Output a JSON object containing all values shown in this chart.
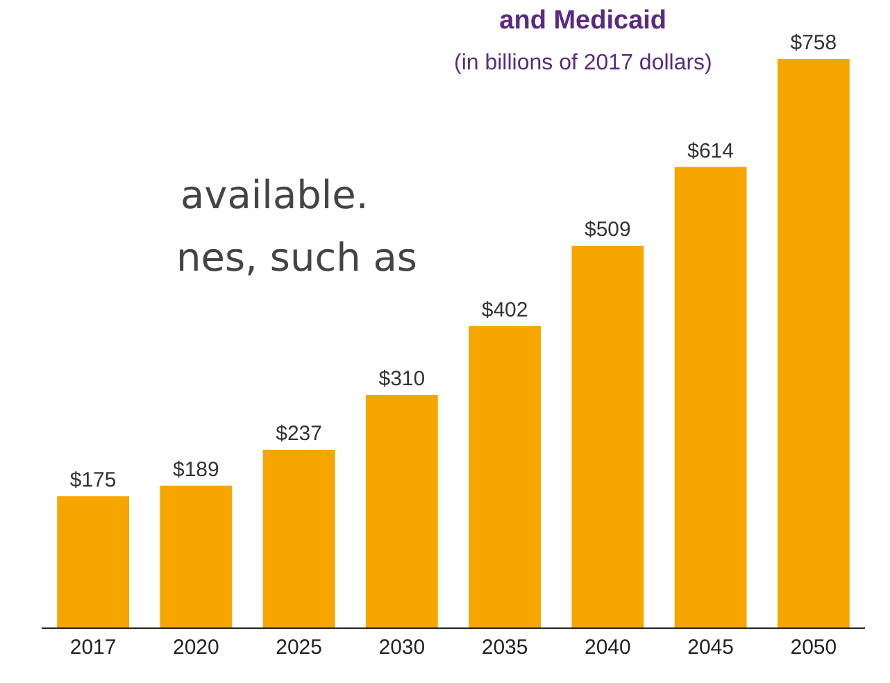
{
  "chart_data": {
    "type": "bar",
    "title": "and Medicaid",
    "subtitle": "(in billions of 2017 dollars)",
    "annotations": [
      "available.",
      "nes, such as"
    ],
    "categories": [
      "2017",
      "2020",
      "2025",
      "2030",
      "2035",
      "2040",
      "2045",
      "2050"
    ],
    "values": [
      175,
      189,
      237,
      310,
      402,
      509,
      614,
      758
    ],
    "value_labels": [
      "$175",
      "$189",
      "$237",
      "$310",
      "$402",
      "$509",
      "$614",
      "$758"
    ],
    "color": "#f7a600"
  }
}
